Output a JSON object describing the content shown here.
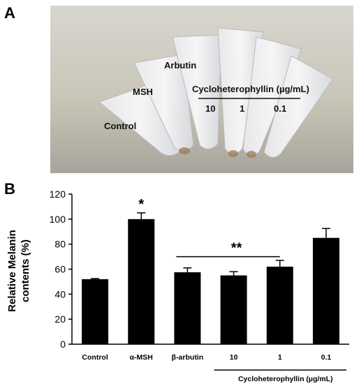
{
  "panel_a": {
    "letter": "A",
    "photo_labels": {
      "control": "Control",
      "msh": "MSH",
      "arbutin": "Arbutin",
      "cyclo_title": "Cycloheterophyllin (µg/mL)",
      "conc_10": "10",
      "conc_1": "1",
      "conc_01": "0.1"
    }
  },
  "panel_b": {
    "letter": "B"
  },
  "chart_data": {
    "type": "bar",
    "ylabel": "Relative Melanin contents (%)",
    "ylabel_line1": "Relative Melanin",
    "ylabel_line2": "contents (%)",
    "ylim": [
      0,
      120
    ],
    "yticks": [
      "0",
      "20",
      "40",
      "60",
      "80",
      "100",
      "120"
    ],
    "categories": [
      "Control",
      "α-MSH",
      "β-arbutin",
      "10",
      "1",
      "0.1"
    ],
    "values": [
      52,
      100,
      57.5,
      55,
      62,
      85
    ],
    "errors": [
      0.5,
      5,
      3.5,
      3,
      5,
      7.5
    ],
    "bar_color": "#000000",
    "significance": {
      "single_star": "*",
      "single_star_category": "α-MSH",
      "double_star": "**",
      "double_star_from": "β-arbutin",
      "double_star_to": "1"
    },
    "group_label": "Cycloheterophyllin (µg/mL)"
  }
}
